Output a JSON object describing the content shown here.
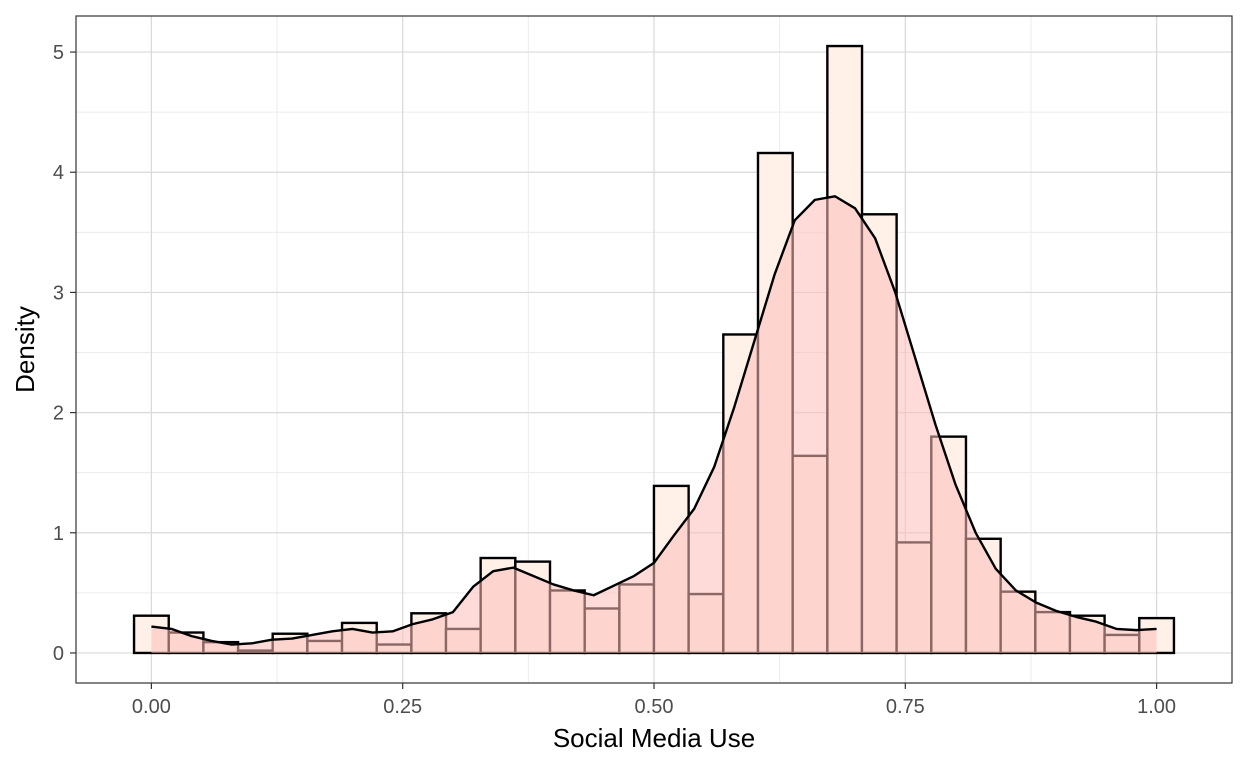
{
  "chart_data": {
    "type": "bar",
    "title": "",
    "xlabel": "Social Media Use",
    "ylabel": "Density",
    "xlim": [
      -0.075,
      1.075
    ],
    "ylim": [
      -0.25,
      5.3
    ],
    "x_ticks": [
      0,
      0.25,
      0.5,
      0.75,
      1
    ],
    "x_tick_labels": [
      "0.00",
      "0.25",
      "0.50",
      "0.75",
      "1.00"
    ],
    "y_ticks": [
      0,
      1,
      2,
      3,
      4,
      5
    ],
    "y_tick_labels": [
      "0",
      "1",
      "2",
      "3",
      "4",
      "5"
    ],
    "grid": true,
    "bin_width": 0.0345,
    "histogram": {
      "centers": [
        0,
        0.0345,
        0.069,
        0.1034,
        0.1379,
        0.1724,
        0.2069,
        0.2414,
        0.2759,
        0.3103,
        0.3448,
        0.3793,
        0.4138,
        0.4483,
        0.4828,
        0.5172,
        0.5517,
        0.5862,
        0.6207,
        0.6552,
        0.6897,
        0.7241,
        0.7586,
        0.7931,
        0.8276,
        0.8621,
        0.8966,
        0.931,
        0.9655,
        1
      ],
      "density": [
        0.31,
        0.17,
        0.09,
        0.02,
        0.16,
        0.1,
        0.25,
        0.07,
        0.33,
        0.2,
        0.79,
        0.76,
        0.52,
        0.37,
        0.57,
        1.39,
        0.49,
        2.65,
        4.16,
        1.64,
        5.05,
        3.65,
        0.92,
        1.8,
        0.95,
        0.51,
        0.34,
        0.31,
        0.15,
        0.29
      ]
    },
    "density_curve": {
      "x": [
        0,
        0.02,
        0.04,
        0.06,
        0.08,
        0.1,
        0.12,
        0.14,
        0.16,
        0.18,
        0.2,
        0.22,
        0.24,
        0.26,
        0.28,
        0.3,
        0.32,
        0.34,
        0.36,
        0.38,
        0.4,
        0.42,
        0.44,
        0.46,
        0.48,
        0.5,
        0.52,
        0.54,
        0.56,
        0.58,
        0.6,
        0.62,
        0.64,
        0.66,
        0.68,
        0.7,
        0.72,
        0.74,
        0.76,
        0.78,
        0.8,
        0.82,
        0.84,
        0.86,
        0.88,
        0.9,
        0.92,
        0.94,
        0.96,
        0.98,
        1
      ],
      "y": [
        0.22,
        0.2,
        0.14,
        0.1,
        0.07,
        0.08,
        0.11,
        0.12,
        0.15,
        0.18,
        0.2,
        0.17,
        0.18,
        0.24,
        0.28,
        0.34,
        0.55,
        0.68,
        0.71,
        0.64,
        0.57,
        0.52,
        0.48,
        0.56,
        0.64,
        0.75,
        0.98,
        1.2,
        1.55,
        2.05,
        2.6,
        3.15,
        3.6,
        3.77,
        3.8,
        3.7,
        3.45,
        3.0,
        2.45,
        1.9,
        1.4,
        1.0,
        0.7,
        0.52,
        0.42,
        0.35,
        0.3,
        0.26,
        0.2,
        0.19,
        0.2
      ]
    },
    "colors": {
      "histogram_fill": "#fff0e8",
      "density_fill": "#fdbdb8",
      "outline": "#000000",
      "grid_major": "#d9d9d9",
      "grid_minor": "#ececec",
      "tick_text": "#4d4d4d"
    }
  }
}
